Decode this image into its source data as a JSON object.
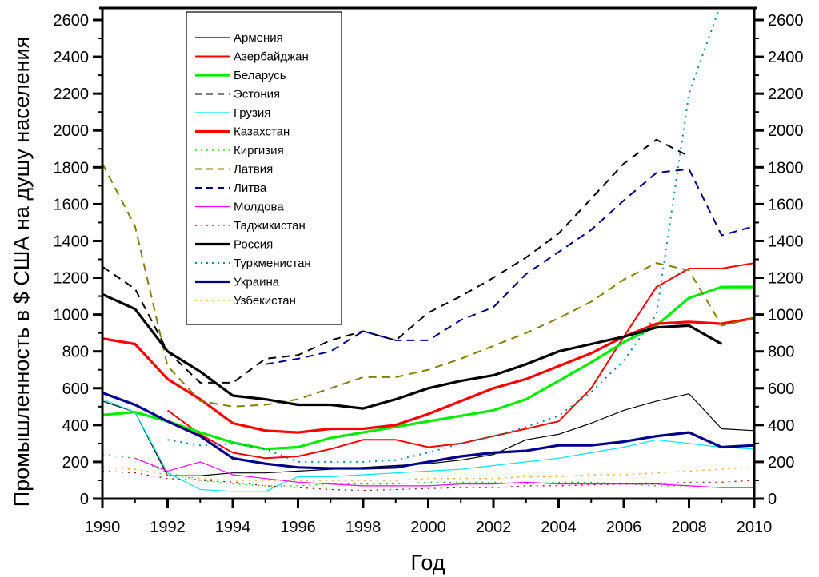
{
  "chart_data": {
    "type": "line",
    "title": "",
    "xlabel": "Год",
    "ylabel": "Промышленность в $ США на душу населения",
    "xlim": [
      1990,
      2010
    ],
    "ylim": [
      0,
      2600
    ],
    "xticks": [
      1990,
      1992,
      1994,
      1996,
      1998,
      2000,
      2002,
      2004,
      2006,
      2008,
      2010
    ],
    "xtick_labels": [
      "1990",
      "1992",
      "1994",
      "1996",
      "1998",
      "2000",
      "2002",
      "2004",
      "2006",
      "2008",
      "2010"
    ],
    "yticks": [
      0,
      200,
      400,
      600,
      800,
      1000,
      1200,
      1400,
      1600,
      1800,
      2000,
      2200,
      2400,
      2600
    ],
    "ytick_labels": [
      "0",
      "200",
      "400",
      "600",
      "800",
      "1000",
      "1200",
      "1400",
      "1600",
      "1800",
      "2000",
      "2200",
      "2400",
      "2600"
    ],
    "right_axis_mirrors_left": true,
    "grid": false,
    "legend_position": "top-left",
    "series": [
      {
        "name": "Армения",
        "color": "#000000",
        "style": "solid",
        "weight": "thin",
        "x": [
          1990,
          1991,
          1992,
          1993,
          1994,
          1995,
          1996,
          1997,
          1998,
          1999,
          2000,
          2001,
          2002,
          2003,
          2004,
          2005,
          2006,
          2007,
          2008,
          2009,
          2010
        ],
        "y": [
          530,
          470,
          125,
          125,
          140,
          140,
          150,
          160,
          170,
          180,
          190,
          210,
          240,
          320,
          350,
          410,
          480,
          530,
          570,
          380,
          370
        ]
      },
      {
        "name": "Азербайджан",
        "color": "#ff0000",
        "style": "solid",
        "weight": "medium",
        "x": [
          1992,
          1993,
          1994,
          1995,
          1996,
          1997,
          1998,
          1999,
          2000,
          2001,
          2002,
          2003,
          2004,
          2005,
          2006,
          2007,
          2008,
          2009,
          2010
        ],
        "y": [
          480,
          350,
          250,
          220,
          230,
          270,
          320,
          320,
          280,
          300,
          340,
          380,
          420,
          600,
          880,
          1150,
          1250,
          1250,
          1280
        ]
      },
      {
        "name": "Беларусь",
        "color": "#00ee00",
        "style": "solid",
        "weight": "thick",
        "x": [
          1990,
          1991,
          1992,
          1993,
          1994,
          1995,
          1996,
          1997,
          1998,
          1999,
          2000,
          2001,
          2002,
          2003,
          2004,
          2005,
          2006,
          2007,
          2008,
          2009,
          2010
        ],
        "y": [
          455,
          470,
          420,
          360,
          305,
          270,
          280,
          330,
          360,
          390,
          420,
          450,
          480,
          540,
          640,
          740,
          850,
          940,
          1090,
          1150,
          1150
        ]
      },
      {
        "name": "Эстония",
        "color": "#000000",
        "style": "dash",
        "weight": "medium",
        "x": [
          1990,
          1991,
          1992,
          1993,
          1994,
          1995,
          1996,
          1997,
          1998,
          1999,
          2000,
          2001,
          2002,
          2003,
          2004,
          2005,
          2006,
          2007,
          2008
        ],
        "y": [
          1260,
          1140,
          800,
          630,
          630,
          760,
          780,
          860,
          910,
          860,
          1010,
          1100,
          1200,
          1310,
          1440,
          1630,
          1820,
          1950,
          1860
        ]
      },
      {
        "name": "Грузия",
        "color": "#00e5ee",
        "style": "solid",
        "weight": "thin",
        "x": [
          1990,
          1991,
          1992,
          1993,
          1994,
          1995,
          1996,
          1997,
          1998,
          1999,
          2000,
          2001,
          2002,
          2003,
          2004,
          2005,
          2006,
          2007,
          2008,
          2009,
          2010
        ],
        "y": [
          540,
          470,
          140,
          50,
          40,
          40,
          120,
          120,
          130,
          140,
          150,
          160,
          180,
          200,
          220,
          250,
          280,
          320,
          300,
          280,
          270
        ]
      },
      {
        "name": "Казахстан",
        "color": "#ff0000",
        "style": "solid",
        "weight": "thick",
        "x": [
          1990,
          1991,
          1992,
          1993,
          1994,
          1995,
          1996,
          1997,
          1998,
          1999,
          2000,
          2001,
          2002,
          2003,
          2004,
          2005,
          2006,
          2007,
          2008,
          2009,
          2010
        ],
        "y": [
          870,
          840,
          650,
          540,
          410,
          370,
          360,
          380,
          380,
          400,
          460,
          530,
          600,
          650,
          720,
          790,
          880,
          950,
          960,
          950,
          980
        ]
      },
      {
        "name": "Киргизия",
        "color": "#00cc00",
        "style": "dot",
        "weight": "thin",
        "x": [
          1990,
          1991,
          1992,
          1993,
          1994,
          1995,
          1996,
          1997,
          1998,
          1999,
          2000,
          2001,
          2002,
          2003,
          2004,
          2005,
          2006,
          2007,
          2008,
          2009,
          2010
        ],
        "y": [
          240,
          220,
          140,
          100,
          80,
          70,
          70,
          80,
          80,
          80,
          90,
          90,
          90,
          80,
          90,
          90,
          80,
          70,
          70,
          60,
          60
        ]
      },
      {
        "name": "Латвия",
        "color": "#808000",
        "style": "dash",
        "weight": "medium",
        "x": [
          1990,
          1991,
          1992,
          1993,
          1994,
          1995,
          1996,
          1997,
          1998,
          1999,
          2000,
          2001,
          2002,
          2003,
          2004,
          2005,
          2006,
          2007,
          2008,
          2009,
          2010
        ],
        "y": [
          1820,
          1480,
          720,
          530,
          500,
          510,
          540,
          600,
          660,
          660,
          700,
          760,
          830,
          900,
          980,
          1070,
          1190,
          1280,
          1240,
          940,
          980
        ]
      },
      {
        "name": "Литва",
        "color": "#000080",
        "style": "dash",
        "weight": "medium",
        "x": [
          1995,
          1996,
          1997,
          1998,
          1999,
          2000,
          2001,
          2002,
          2003,
          2004,
          2005,
          2006,
          2007,
          2008,
          2009,
          2010
        ],
        "y": [
          730,
          760,
          800,
          910,
          860,
          860,
          970,
          1040,
          1220,
          1340,
          1460,
          1620,
          1770,
          1790,
          1430,
          1480
        ]
      },
      {
        "name": "Молдова",
        "color": "#ff00ff",
        "style": "solid",
        "weight": "thin",
        "x": [
          1991,
          1992,
          1993,
          1994,
          1995,
          1996,
          1997,
          1998,
          1999,
          2000,
          2001,
          2002,
          2003,
          2004,
          2005,
          2006,
          2007,
          2008,
          2009,
          2010
        ],
        "y": [
          220,
          150,
          200,
          130,
          110,
          90,
          80,
          70,
          70,
          70,
          80,
          80,
          90,
          80,
          80,
          80,
          80,
          70,
          60,
          60
        ]
      },
      {
        "name": "Таджикистан",
        "color": "#800000",
        "style": "dot",
        "weight": "thin",
        "x": [
          1990,
          1991,
          1992,
          1993,
          1994,
          1995,
          1996,
          1997,
          1998,
          1999,
          2000,
          2001,
          2002,
          2003,
          2004,
          2005,
          2006,
          2007,
          2008,
          2009,
          2010
        ],
        "y": [
          150,
          140,
          110,
          100,
          90,
          70,
          60,
          50,
          45,
          50,
          55,
          60,
          60,
          70,
          70,
          75,
          80,
          80,
          90,
          90,
          100
        ]
      },
      {
        "name": "Россия",
        "color": "#000000",
        "style": "solid",
        "weight": "thick",
        "x": [
          1990,
          1991,
          1992,
          1993,
          1994,
          1995,
          1996,
          1997,
          1998,
          1999,
          2000,
          2001,
          2002,
          2003,
          2004,
          2005,
          2006,
          2007,
          2008,
          2009
        ],
        "y": [
          1110,
          1030,
          800,
          690,
          560,
          540,
          510,
          510,
          490,
          540,
          600,
          640,
          670,
          730,
          800,
          840,
          880,
          930,
          940,
          840
        ]
      },
      {
        "name": "Туркменистан",
        "color": "#008b8b",
        "style": "dot",
        "weight": "medium",
        "x": [
          1992,
          1993,
          1994,
          1995,
          1996,
          1997,
          1998,
          1999,
          2000,
          2001,
          2002,
          2003,
          2004,
          2005,
          2006,
          2007,
          2008,
          2009
        ],
        "y": [
          320,
          290,
          300,
          270,
          200,
          200,
          200,
          210,
          250,
          300,
          340,
          390,
          450,
          580,
          750,
          1000,
          2200,
          2700
        ]
      },
      {
        "name": "Украина",
        "color": "#00008b",
        "style": "solid",
        "weight": "thick",
        "x": [
          1990,
          1991,
          1992,
          1993,
          1994,
          1995,
          1996,
          1997,
          1998,
          1999,
          2000,
          2001,
          2002,
          2003,
          2004,
          2005,
          2006,
          2007,
          2008,
          2009,
          2010
        ],
        "y": [
          575,
          510,
          420,
          340,
          220,
          190,
          170,
          165,
          165,
          170,
          200,
          230,
          250,
          260,
          290,
          290,
          310,
          340,
          360,
          280,
          290
        ]
      },
      {
        "name": "Узбекистан",
        "color": "#ff8c00",
        "style": "dot",
        "weight": "thin",
        "x": [
          1990,
          1991,
          1992,
          1993,
          1994,
          1995,
          1996,
          1997,
          1998,
          1999,
          2000,
          2001,
          2002,
          2003,
          2004,
          2005,
          2006,
          2007,
          2008,
          2009,
          2010
        ],
        "y": [
          170,
          160,
          130,
          110,
          100,
          100,
          100,
          100,
          100,
          100,
          110,
          110,
          110,
          120,
          120,
          130,
          130,
          140,
          150,
          160,
          170
        ]
      }
    ]
  }
}
